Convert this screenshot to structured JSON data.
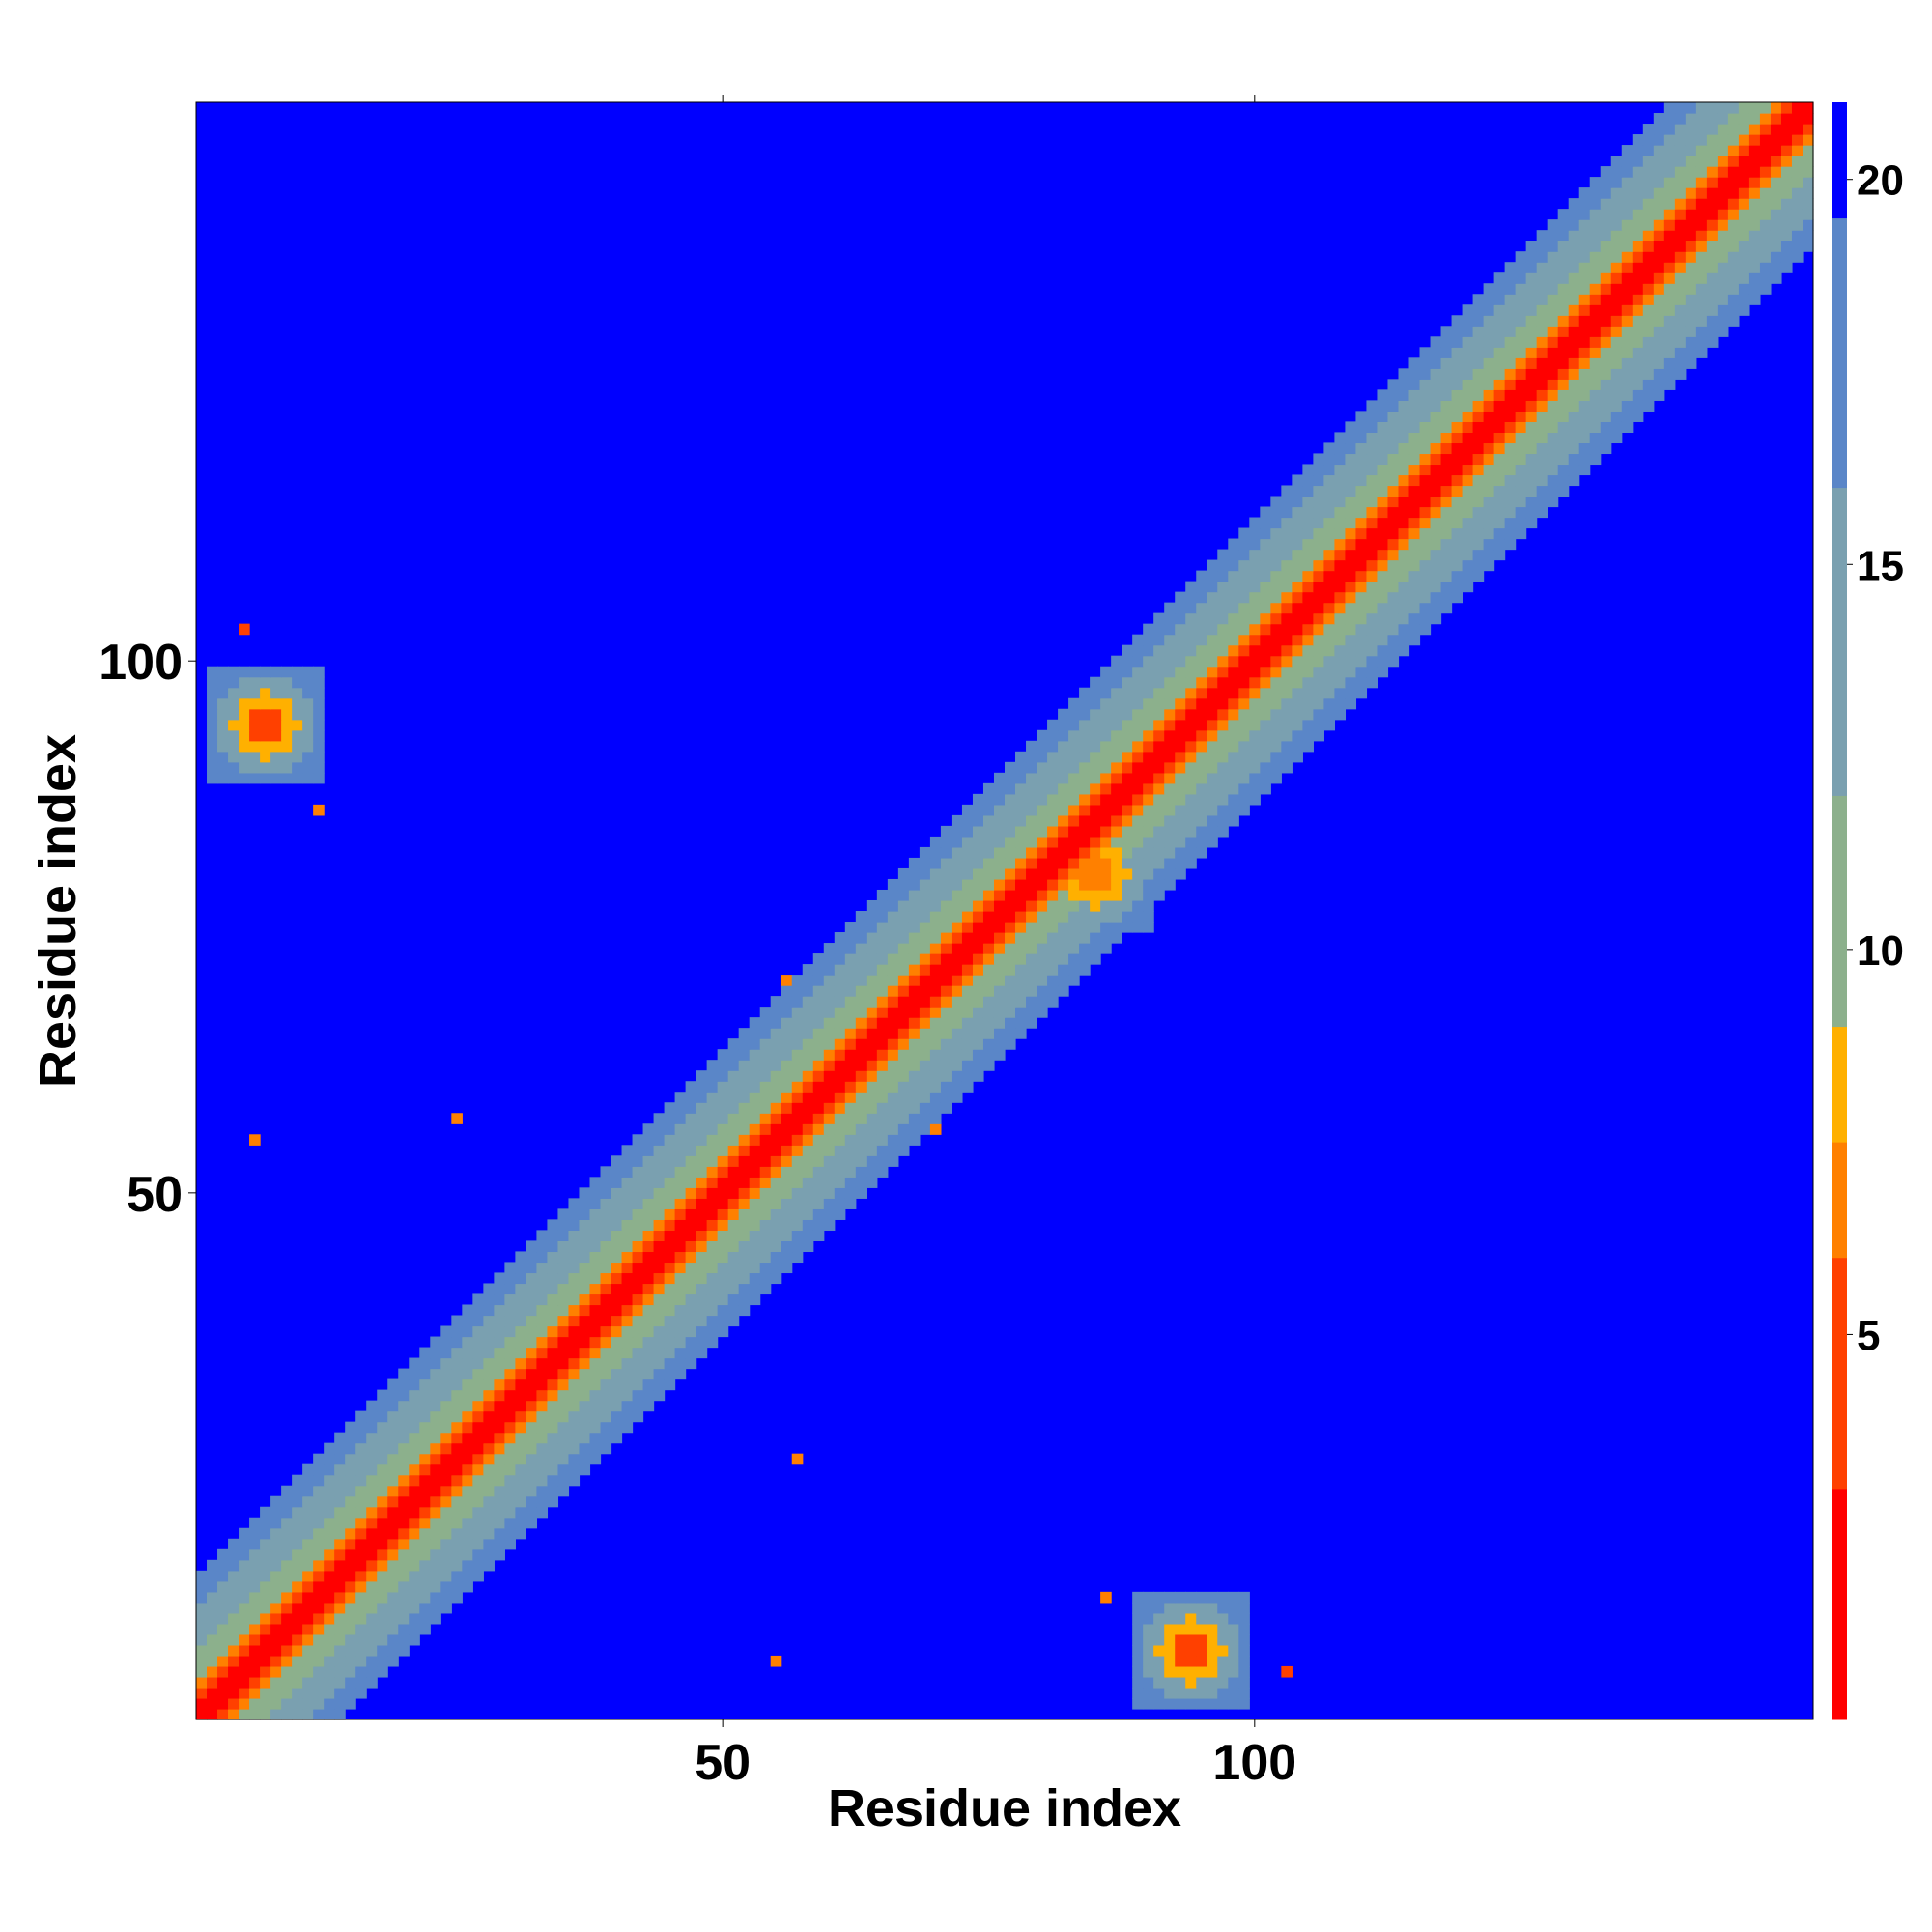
{
  "chart_data": {
    "type": "heatmap",
    "title": "",
    "xlabel": "Residue index",
    "ylabel": "Residue index",
    "xlim": [
      1,
      152
    ],
    "ylim": [
      1,
      152
    ],
    "xticks": [
      50,
      100
    ],
    "yticks": [
      50,
      100
    ],
    "grid": false,
    "colorbar": {
      "ticks": [
        5,
        10,
        15,
        20
      ],
      "range": [
        0,
        21
      ],
      "colors": [
        "#ff0000",
        "#ff4000",
        "#ff8000",
        "#ffb000",
        "#8cb08c",
        "#7aa0b0",
        "#5a86c8",
        "#0000ff"
      ],
      "boundaries": [
        0,
        3,
        6,
        7.5,
        9,
        12,
        16,
        19.5,
        21
      ]
    },
    "diagonal_band": {
      "description_values": {
        "diagonal": 1.0,
        "offset_1": 2.5,
        "offset_2": 5.5,
        "offset_3": 7.0,
        "offset_4_6": 10.5,
        "offset_7_10": 15.0,
        "offset_11_13": 18.5
      }
    },
    "contact_regions": [
      {
        "x_center": 7,
        "y_center": 94,
        "values_min": 5.0,
        "values_max": 17.0
      },
      {
        "x_center": 94,
        "y_center": 7,
        "values_min": 5.0,
        "values_max": 17.0
      },
      {
        "x_center": 85,
        "y_center": 80,
        "values_min": 6.0,
        "values_max": 18.0
      }
    ],
    "isolated_contacts": [
      {
        "x": 56,
        "y": 70,
        "value": 6.0
      },
      {
        "x": 70,
        "y": 56,
        "value": 6.0
      },
      {
        "x": 25,
        "y": 57,
        "value": 6.5
      },
      {
        "x": 57,
        "y": 25,
        "value": 6.5
      },
      {
        "x": 6,
        "y": 55,
        "value": 6.0
      },
      {
        "x": 55,
        "y": 6,
        "value": 6.0
      },
      {
        "x": 103,
        "y": 5,
        "value": 5.5
      },
      {
        "x": 5,
        "y": 103,
        "value": 5.5
      },
      {
        "x": 12,
        "y": 86,
        "value": 6.0
      },
      {
        "x": 86,
        "y": 12,
        "value": 6.0
      }
    ]
  }
}
